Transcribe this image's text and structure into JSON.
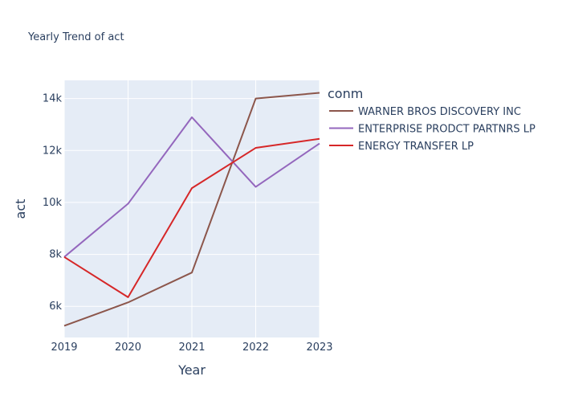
{
  "chart_data": {
    "type": "line",
    "title": "Yearly Trend of act",
    "xlabel": "Year",
    "ylabel": "act",
    "x": [
      2019,
      2020,
      2021,
      2022,
      2023
    ],
    "xlim": [
      2019,
      2023
    ],
    "ylim": [
      4800,
      14700
    ],
    "x_ticks": [
      "2019",
      "2020",
      "2021",
      "2022",
      "2023"
    ],
    "y_ticks": [
      6000,
      8000,
      10000,
      12000,
      14000
    ],
    "y_tick_labels": [
      "6k",
      "8k",
      "10k",
      "12k",
      "14k"
    ],
    "grid": true,
    "legend_title": "conm",
    "legend_position": "right",
    "plot_background": "#e5ecf6",
    "series": [
      {
        "name": "WARNER BROS DISCOVERY INC",
        "color": "#8c564b",
        "values": [
          5250,
          6150,
          7300,
          14000,
          14220
        ]
      },
      {
        "name": "ENTERPRISE PRODCT PARTNRS LP",
        "color": "#9467bd",
        "values": [
          7900,
          9950,
          13280,
          10600,
          12270
        ]
      },
      {
        "name": "ENERGY TRANSFER LP",
        "color": "#d62728",
        "values": [
          7900,
          6350,
          10550,
          12100,
          12450
        ]
      }
    ]
  }
}
